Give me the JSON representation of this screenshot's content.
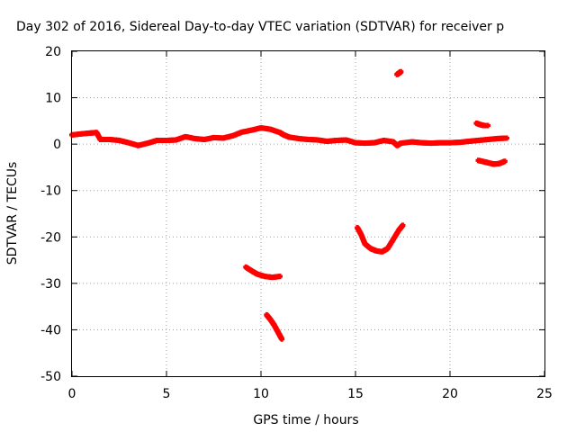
{
  "chart_data": {
    "type": "scatter",
    "title": "Day 302 of 2016, Sidereal Day-to-day VTEC variation (SDTVAR) for receiver p",
    "xlabel": "GPS time / hours",
    "ylabel": "SDTVAR / TECUs",
    "xlim": [
      0,
      25
    ],
    "ylim": [
      -50,
      20
    ],
    "xticks": [
      0,
      5,
      10,
      15,
      20,
      25
    ],
    "yticks": [
      20,
      10,
      0,
      -10,
      -20,
      -30,
      -40,
      -50
    ],
    "xtick_labels": [
      "0",
      "5",
      "10",
      "15",
      "20",
      "25"
    ],
    "ytick_labels": [
      "20",
      "10",
      "0",
      "-10",
      "-20",
      "-30",
      "-40",
      "-50"
    ],
    "grid": true,
    "legend": "none",
    "marker_color": "#ff0000",
    "series": [
      {
        "points": [
          [
            0.0,
            2.0
          ],
          [
            0.5,
            2.2
          ],
          [
            1.0,
            2.4
          ],
          [
            1.3,
            2.5
          ],
          [
            1.5,
            1.0
          ],
          [
            2.0,
            1.0
          ],
          [
            2.5,
            0.8
          ],
          [
            3.0,
            0.3
          ],
          [
            3.5,
            -0.3
          ],
          [
            4.0,
            0.2
          ],
          [
            4.5,
            0.8
          ],
          [
            5.0,
            0.8
          ],
          [
            5.5,
            0.9
          ],
          [
            6.0,
            1.6
          ],
          [
            6.5,
            1.2
          ],
          [
            7.0,
            1.0
          ],
          [
            7.5,
            1.4
          ],
          [
            8.0,
            1.3
          ],
          [
            8.5,
            1.8
          ],
          [
            9.0,
            2.6
          ],
          [
            9.5,
            3.0
          ],
          [
            10.0,
            3.5
          ],
          [
            10.5,
            3.2
          ],
          [
            11.0,
            2.5
          ],
          [
            11.2,
            2.0
          ],
          [
            11.5,
            1.5
          ],
          [
            12.0,
            1.2
          ],
          [
            12.5,
            1.0
          ],
          [
            13.0,
            0.9
          ],
          [
            13.5,
            0.6
          ],
          [
            14.0,
            0.8
          ],
          [
            14.5,
            0.9
          ],
          [
            15.0,
            0.3
          ],
          [
            15.5,
            0.2
          ],
          [
            16.0,
            0.3
          ],
          [
            16.5,
            0.8
          ],
          [
            17.0,
            0.5
          ],
          [
            17.2,
            -0.3
          ],
          [
            17.4,
            0.2
          ],
          [
            18.0,
            0.5
          ],
          [
            18.5,
            0.3
          ],
          [
            19.0,
            0.2
          ],
          [
            19.5,
            0.3
          ],
          [
            20.0,
            0.3
          ],
          [
            20.5,
            0.4
          ],
          [
            21.0,
            0.6
          ],
          [
            21.5,
            0.8
          ],
          [
            22.0,
            1.0
          ],
          [
            22.5,
            1.2
          ],
          [
            23.0,
            1.3
          ]
        ]
      },
      {
        "points": [
          [
            21.4,
            4.5
          ],
          [
            21.6,
            4.2
          ],
          [
            21.8,
            4.0
          ],
          [
            22.0,
            4.0
          ]
        ]
      },
      {
        "points": [
          [
            17.2,
            15.0
          ],
          [
            17.3,
            15.3
          ],
          [
            17.4,
            15.6
          ]
        ]
      },
      {
        "points": [
          [
            21.5,
            -3.5
          ],
          [
            21.8,
            -3.8
          ],
          [
            22.0,
            -4.0
          ],
          [
            22.3,
            -4.3
          ],
          [
            22.6,
            -4.2
          ],
          [
            22.9,
            -3.7
          ]
        ]
      },
      {
        "points": [
          [
            9.2,
            -26.5
          ],
          [
            9.5,
            -27.3
          ],
          [
            9.8,
            -28.0
          ],
          [
            10.2,
            -28.5
          ],
          [
            10.6,
            -28.7
          ],
          [
            11.0,
            -28.5
          ]
        ]
      },
      {
        "points": [
          [
            10.3,
            -36.8
          ],
          [
            10.5,
            -37.8
          ],
          [
            10.7,
            -39.0
          ],
          [
            10.9,
            -40.5
          ],
          [
            11.1,
            -42.0
          ]
        ]
      },
      {
        "points": [
          [
            15.1,
            -18.0
          ],
          [
            15.3,
            -19.5
          ],
          [
            15.5,
            -21.5
          ],
          [
            15.8,
            -22.5
          ],
          [
            16.1,
            -23.0
          ],
          [
            16.4,
            -23.2
          ],
          [
            16.7,
            -22.5
          ],
          [
            17.0,
            -20.5
          ],
          [
            17.3,
            -18.5
          ],
          [
            17.5,
            -17.5
          ]
        ]
      }
    ]
  }
}
